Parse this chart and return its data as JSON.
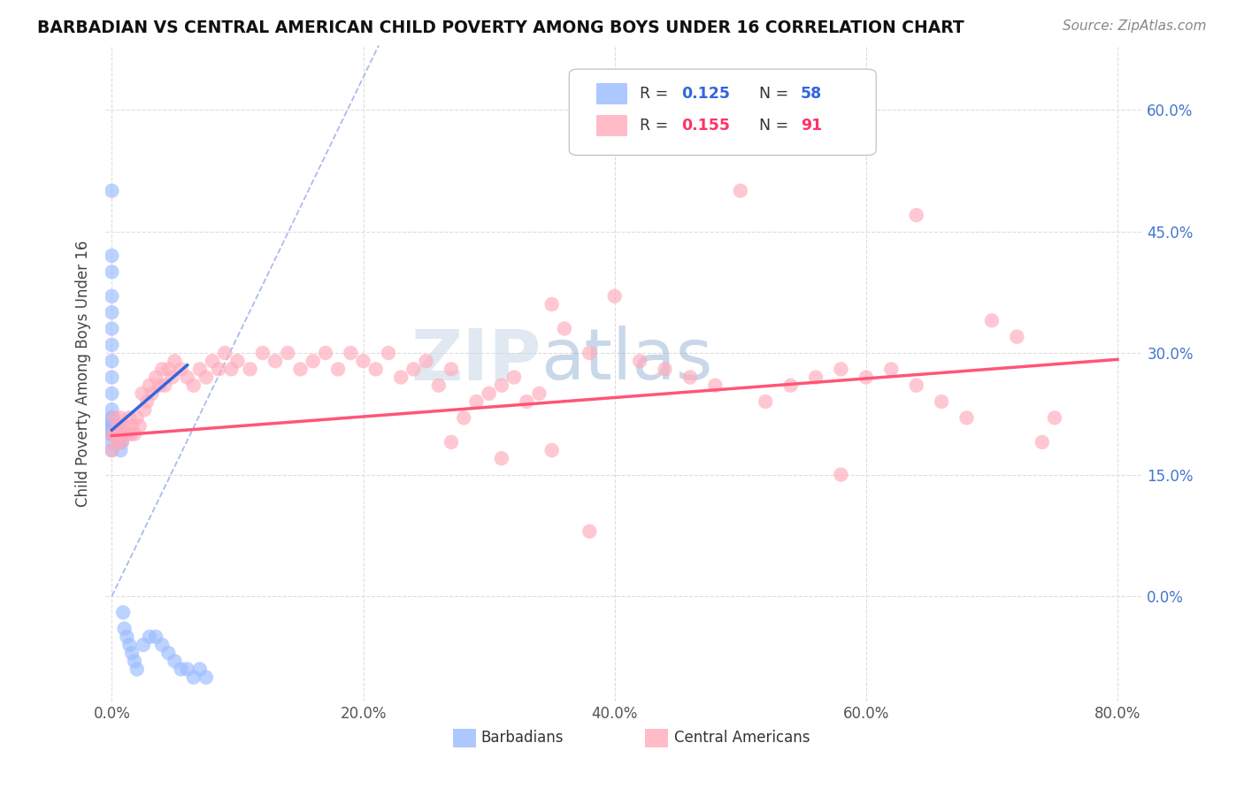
{
  "title": "BARBADIAN VS CENTRAL AMERICAN CHILD POVERTY AMONG BOYS UNDER 16 CORRELATION CHART",
  "source": "Source: ZipAtlas.com",
  "ylabel": "Child Poverty Among Boys Under 16",
  "xlim": [
    -0.005,
    0.82
  ],
  "ylim": [
    -0.13,
    0.68
  ],
  "xticks": [
    0.0,
    0.2,
    0.4,
    0.6,
    0.8
  ],
  "xticklabels": [
    "0.0%",
    "20.0%",
    "40.0%",
    "60.0%",
    "80.0%"
  ],
  "yticks": [
    0.0,
    0.15,
    0.3,
    0.45,
    0.6
  ],
  "yticklabels": [
    "0.0%",
    "15.0%",
    "30.0%",
    "45.0%",
    "60.0%"
  ],
  "blue_color": "#99bbff",
  "pink_color": "#ffaabb",
  "blue_line_color": "#3366dd",
  "pink_line_color": "#ff5577",
  "diag_color": "#aabbee",
  "watermark_zip": "ZIP",
  "watermark_atlas": "atlas",
  "background_color": "#ffffff",
  "grid_color": "#dddddd",
  "blue_trend_x0": 0.0,
  "blue_trend_x1": 0.06,
  "blue_trend_y0": 0.205,
  "blue_trend_y1": 0.285,
  "pink_trend_x0": 0.0,
  "pink_trend_x1": 0.8,
  "pink_trend_y0": 0.198,
  "pink_trend_y1": 0.292,
  "barbadian_x": [
    0.0,
    0.0,
    0.0,
    0.0,
    0.0,
    0.0,
    0.0,
    0.0,
    0.0,
    0.0,
    0.0,
    0.0,
    0.0,
    0.0,
    0.0,
    0.0,
    0.0,
    0.0,
    0.0,
    0.0,
    0.0,
    0.0,
    0.0,
    0.0,
    0.0,
    0.002,
    0.002,
    0.002,
    0.003,
    0.003,
    0.003,
    0.003,
    0.004,
    0.004,
    0.005,
    0.005,
    0.006,
    0.006,
    0.007,
    0.008,
    0.009,
    0.01,
    0.012,
    0.014,
    0.016,
    0.018,
    0.02,
    0.025,
    0.03,
    0.035,
    0.04,
    0.045,
    0.05,
    0.055,
    0.06,
    0.065,
    0.07,
    0.075
  ],
  "barbadian_y": [
    0.5,
    0.42,
    0.4,
    0.37,
    0.35,
    0.33,
    0.31,
    0.29,
    0.27,
    0.25,
    0.23,
    0.21,
    0.2,
    0.19,
    0.18,
    0.21,
    0.22,
    0.2,
    0.21,
    0.22,
    0.21,
    0.2,
    0.2,
    0.21,
    0.2,
    0.21,
    0.2,
    0.2,
    0.21,
    0.2,
    0.21,
    0.2,
    0.2,
    0.2,
    0.21,
    0.2,
    0.19,
    0.19,
    0.18,
    0.19,
    -0.02,
    -0.04,
    -0.05,
    -0.06,
    -0.07,
    -0.08,
    -0.09,
    -0.06,
    -0.05,
    -0.05,
    -0.06,
    -0.07,
    -0.08,
    -0.09,
    -0.09,
    -0.1,
    -0.09,
    -0.1
  ],
  "central_american_x": [
    0.0,
    0.0,
    0.002,
    0.003,
    0.004,
    0.005,
    0.006,
    0.007,
    0.008,
    0.01,
    0.012,
    0.014,
    0.015,
    0.016,
    0.018,
    0.02,
    0.022,
    0.024,
    0.026,
    0.028,
    0.03,
    0.032,
    0.035,
    0.038,
    0.04,
    0.042,
    0.045,
    0.048,
    0.05,
    0.055,
    0.06,
    0.065,
    0.07,
    0.075,
    0.08,
    0.085,
    0.09,
    0.095,
    0.1,
    0.11,
    0.12,
    0.13,
    0.14,
    0.15,
    0.16,
    0.17,
    0.18,
    0.19,
    0.2,
    0.21,
    0.22,
    0.23,
    0.24,
    0.25,
    0.26,
    0.27,
    0.28,
    0.29,
    0.3,
    0.31,
    0.32,
    0.33,
    0.34,
    0.35,
    0.36,
    0.38,
    0.4,
    0.42,
    0.44,
    0.46,
    0.48,
    0.5,
    0.52,
    0.54,
    0.56,
    0.58,
    0.6,
    0.62,
    0.64,
    0.66,
    0.68,
    0.7,
    0.72,
    0.74,
    0.75,
    0.64,
    0.58,
    0.38,
    0.35,
    0.31,
    0.27
  ],
  "central_american_y": [
    0.2,
    0.18,
    0.22,
    0.2,
    0.19,
    0.21,
    0.2,
    0.22,
    0.19,
    0.21,
    0.2,
    0.22,
    0.2,
    0.21,
    0.2,
    0.22,
    0.21,
    0.25,
    0.23,
    0.24,
    0.26,
    0.25,
    0.27,
    0.26,
    0.28,
    0.26,
    0.28,
    0.27,
    0.29,
    0.28,
    0.27,
    0.26,
    0.28,
    0.27,
    0.29,
    0.28,
    0.3,
    0.28,
    0.29,
    0.28,
    0.3,
    0.29,
    0.3,
    0.28,
    0.29,
    0.3,
    0.28,
    0.3,
    0.29,
    0.28,
    0.3,
    0.27,
    0.28,
    0.29,
    0.26,
    0.28,
    0.22,
    0.24,
    0.25,
    0.26,
    0.27,
    0.24,
    0.25,
    0.36,
    0.33,
    0.3,
    0.37,
    0.29,
    0.28,
    0.27,
    0.26,
    0.5,
    0.24,
    0.26,
    0.27,
    0.28,
    0.27,
    0.28,
    0.26,
    0.24,
    0.22,
    0.34,
    0.32,
    0.19,
    0.22,
    0.47,
    0.15,
    0.08,
    0.18,
    0.17,
    0.19
  ]
}
